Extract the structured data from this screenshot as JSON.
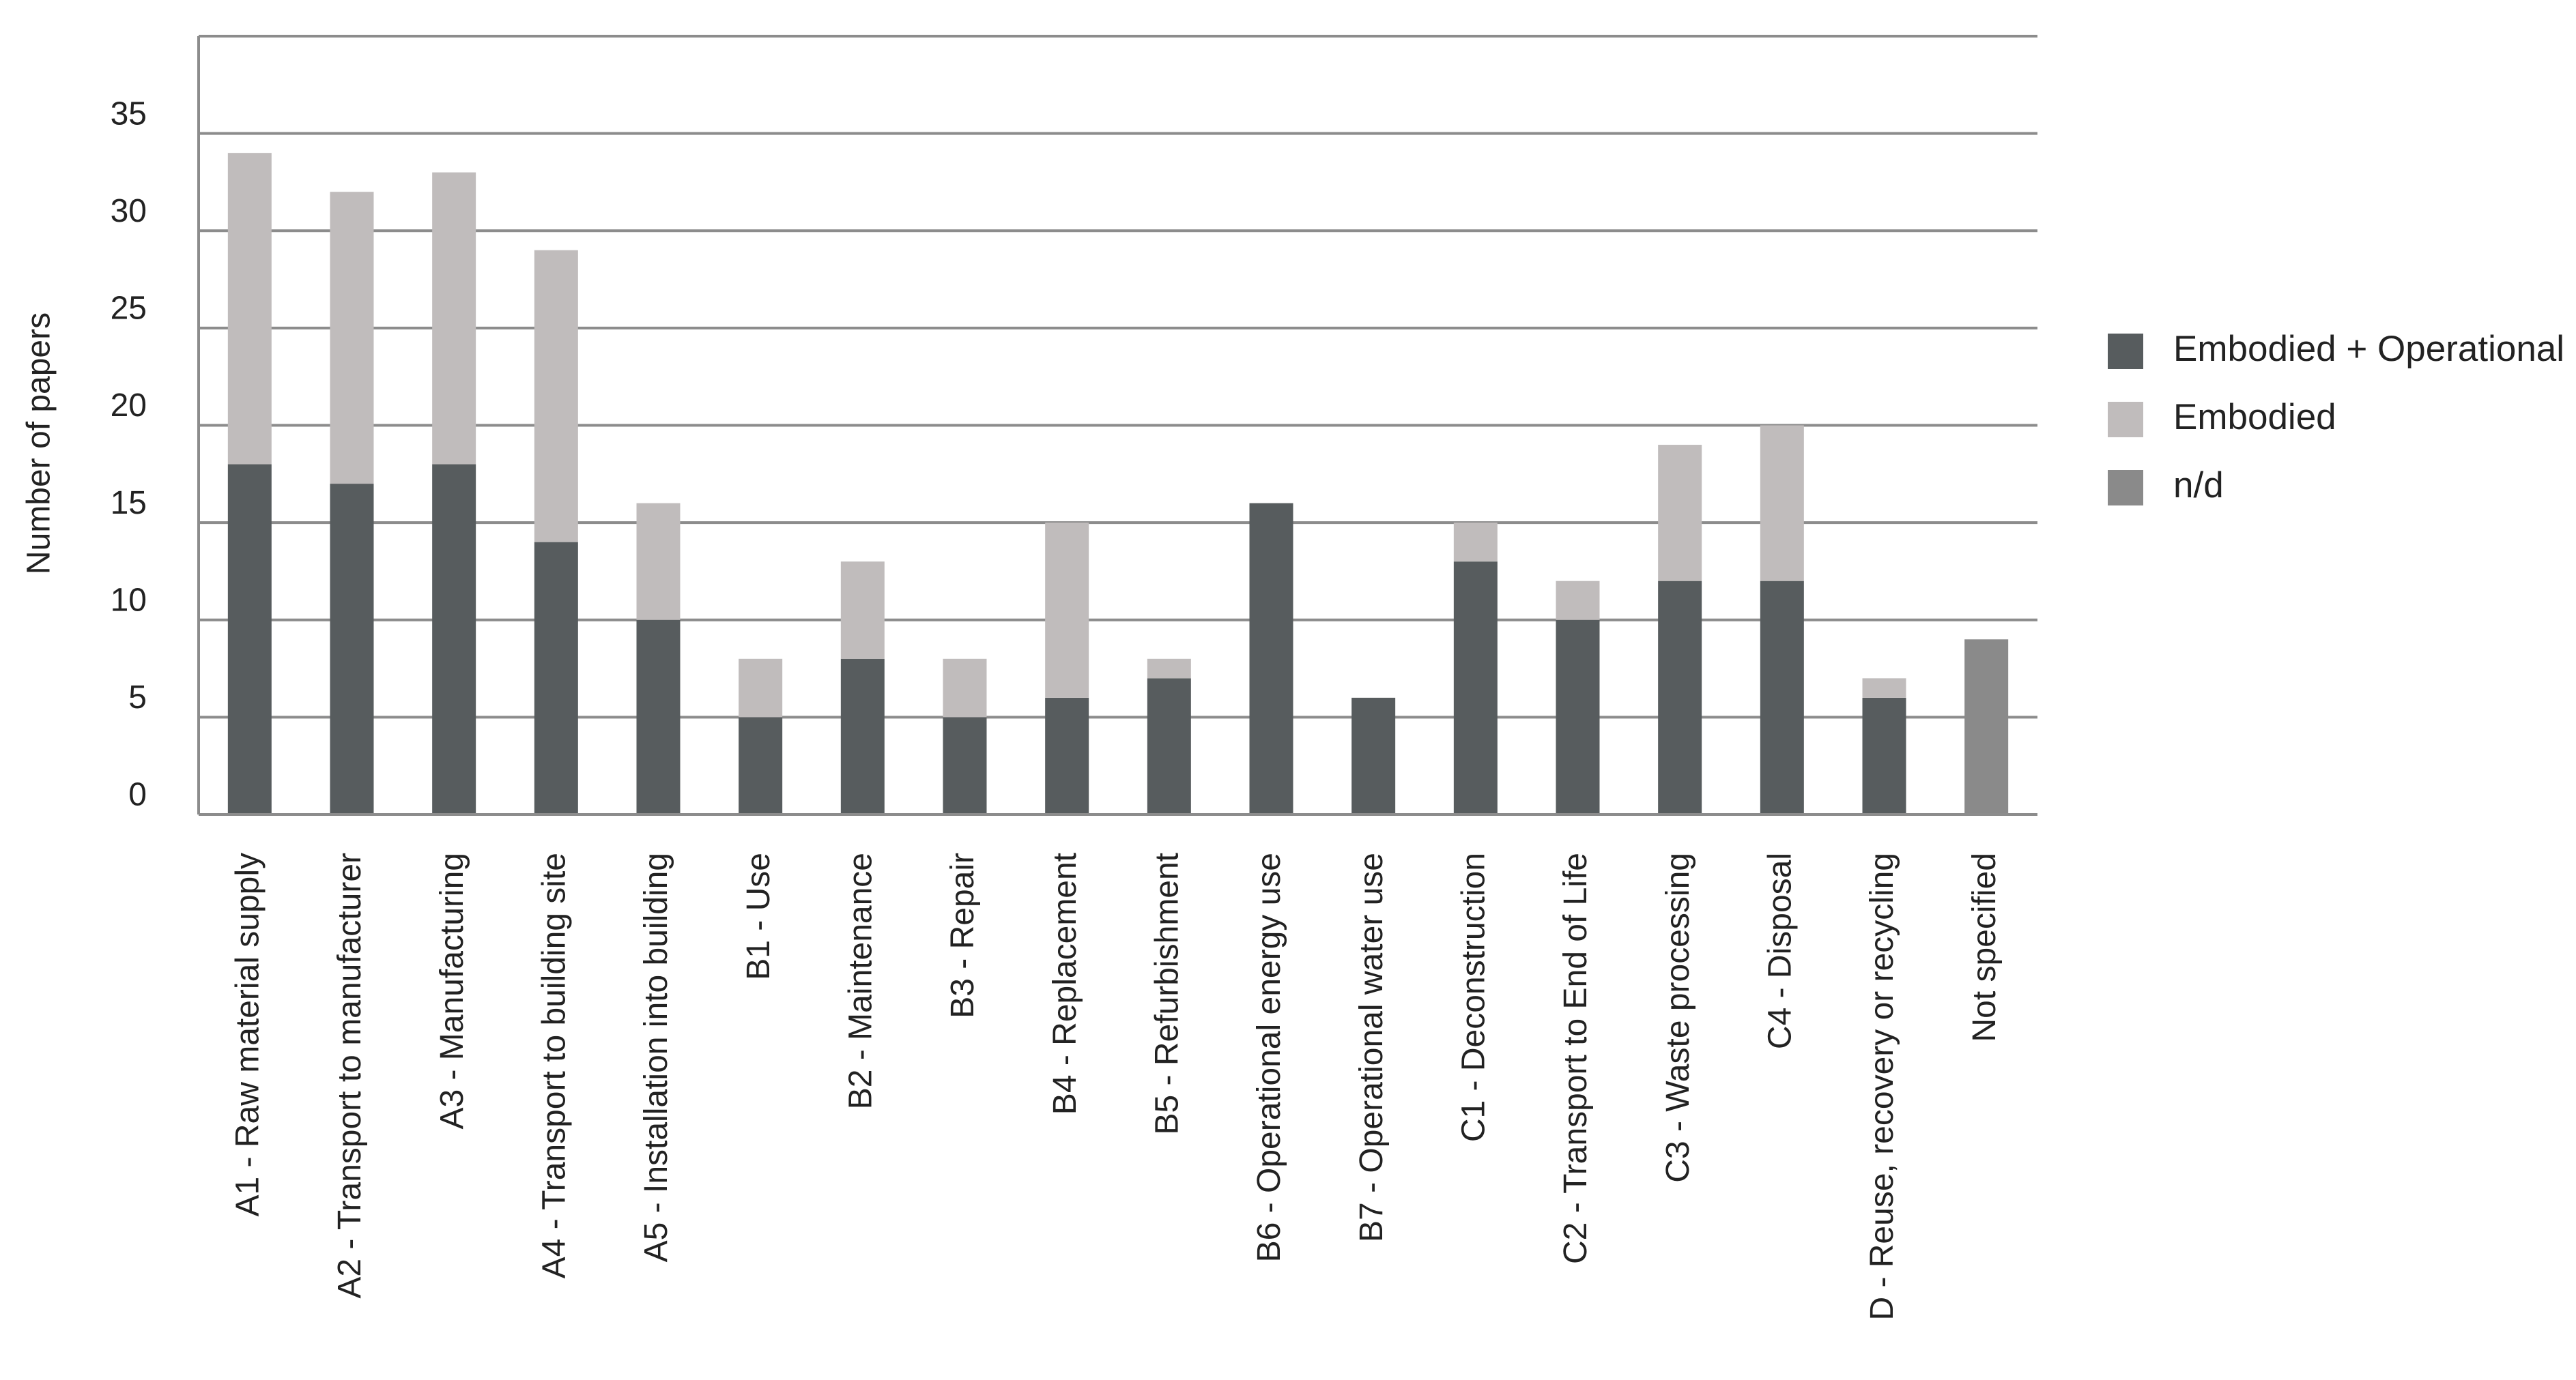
{
  "chart_data": {
    "type": "stacked-bar",
    "y_label": "Number of papers",
    "categories": [
      "A1 - Raw material supply",
      "A2 - Transport to manufacturer",
      "A3 - Manufacturing",
      "A4 - Transport to building site",
      "A5 - Installation into building",
      "B1 - Use",
      "B2 - Maintenance",
      "B3 - Repair",
      "B4 - Replacement",
      "B5 - Refurbishment",
      "B6 - Operational energy use",
      "B7 - Operational water use",
      "C1 - Deconstruction",
      "C2 - Transport to End of Life",
      "C3 - Waste processing",
      "C4 - Disposal",
      "D - Reuse, recovery or recycling",
      "Not specified"
    ],
    "series": [
      {
        "name": "Embodied + Operational",
        "color": "#575c5e",
        "values": [
          18,
          17,
          18,
          14,
          10,
          5,
          8,
          5,
          6,
          7,
          16,
          6,
          13,
          10,
          12,
          12,
          6,
          null
        ]
      },
      {
        "name": "Embodied",
        "color": "#c0bcbc",
        "values": [
          16,
          15,
          15,
          15,
          6,
          3,
          5,
          3,
          9,
          1,
          null,
          null,
          2,
          2,
          7,
          8,
          1,
          null
        ]
      },
      {
        "name": "n/d",
        "color": "#8a8a8a",
        "values": [
          null,
          null,
          null,
          null,
          null,
          null,
          null,
          null,
          null,
          null,
          null,
          null,
          null,
          null,
          null,
          null,
          null,
          9
        ]
      }
    ],
    "ylim": [
      0,
      40
    ],
    "yticks": [
      0,
      5,
      10,
      15,
      20,
      25,
      30,
      35
    ],
    "grid": true,
    "legend": "right"
  }
}
